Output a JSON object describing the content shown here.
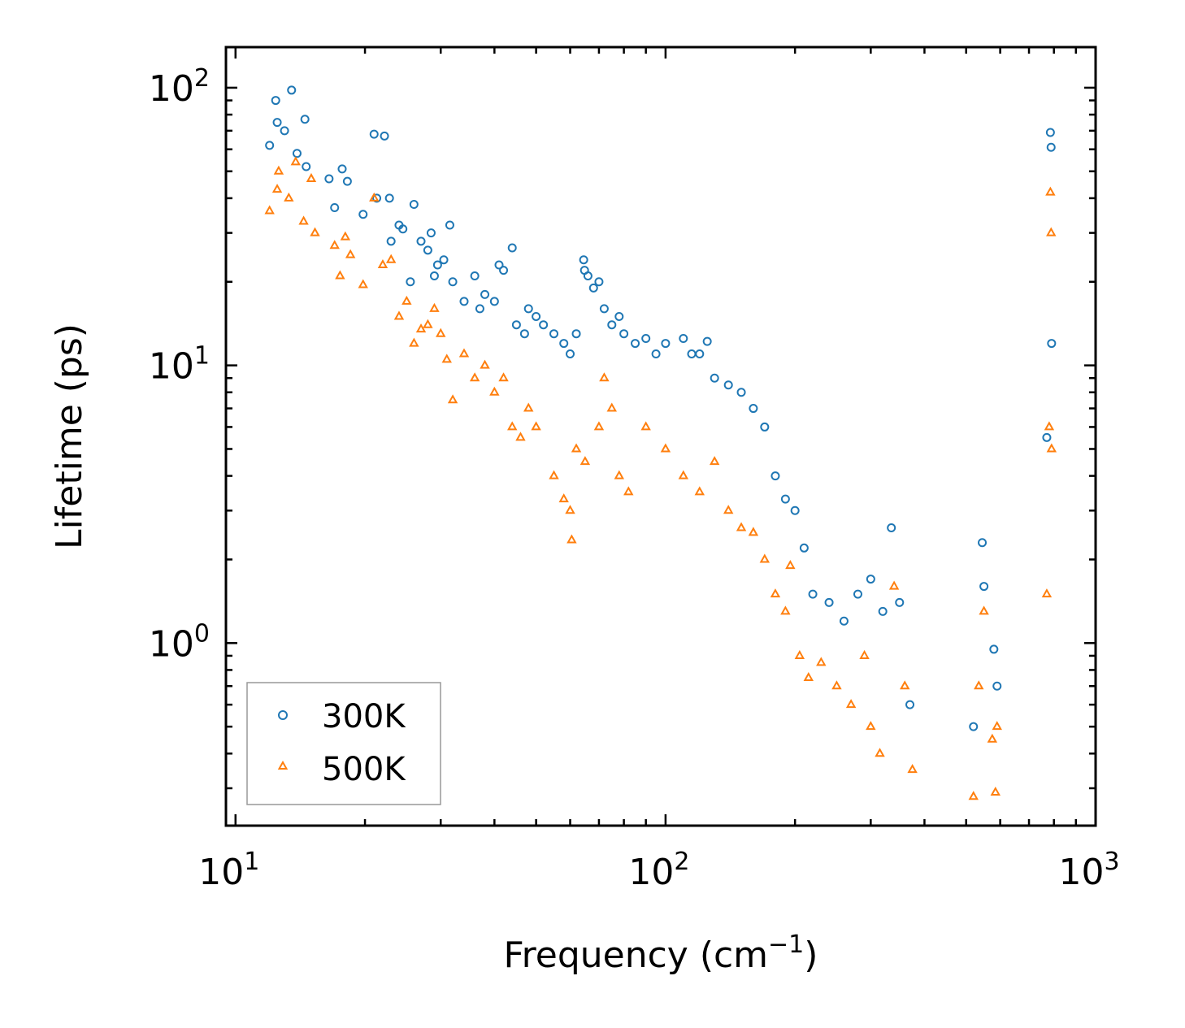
{
  "chart_data": {
    "type": "scatter",
    "title": "",
    "xlabel": "Frequency (cm",
    "xlabel_sup": "−1",
    "xlabel_suffix": ")",
    "ylabel": "Lifetime (ps)",
    "xscale": "log",
    "yscale": "log",
    "xlim": [
      9.5,
      1000
    ],
    "ylim": [
      0.22,
      140
    ],
    "x_ticks": [
      {
        "value": 10,
        "base": "10",
        "exp": "1"
      },
      {
        "value": 100,
        "base": "10",
        "exp": "2"
      },
      {
        "value": 1000,
        "base": "10",
        "exp": "3"
      }
    ],
    "y_ticks": [
      {
        "value": 1,
        "base": "10",
        "exp": "0"
      },
      {
        "value": 10,
        "base": "10",
        "exp": "1"
      },
      {
        "value": 100,
        "base": "10",
        "exp": "2"
      }
    ],
    "legend_position": "bottom-left",
    "series": [
      {
        "name": "300K",
        "color": "#1f77b4",
        "marker": "circle",
        "points": [
          [
            12.0,
            62
          ],
          [
            12.4,
            90
          ],
          [
            12.5,
            75
          ],
          [
            13.0,
            70
          ],
          [
            13.5,
            98
          ],
          [
            13.9,
            58
          ],
          [
            14.5,
            77
          ],
          [
            14.6,
            52
          ],
          [
            16.5,
            47
          ],
          [
            17.0,
            37
          ],
          [
            17.7,
            51
          ],
          [
            18.2,
            46
          ],
          [
            19.8,
            35
          ],
          [
            21.0,
            68
          ],
          [
            22.2,
            67
          ],
          [
            21.3,
            40
          ],
          [
            22.8,
            40
          ],
          [
            24.0,
            32
          ],
          [
            24.5,
            31
          ],
          [
            23.0,
            28
          ],
          [
            25.5,
            20
          ],
          [
            26.0,
            38
          ],
          [
            27.0,
            28
          ],
          [
            28.0,
            26
          ],
          [
            28.5,
            30
          ],
          [
            29.0,
            21
          ],
          [
            29.5,
            23
          ],
          [
            30.5,
            24
          ],
          [
            31.5,
            32
          ],
          [
            32.0,
            20
          ],
          [
            34.0,
            17
          ],
          [
            36.0,
            21
          ],
          [
            37.0,
            16
          ],
          [
            38.0,
            18
          ],
          [
            40.0,
            17
          ],
          [
            41.0,
            23
          ],
          [
            42.0,
            22
          ],
          [
            44.0,
            26.5
          ],
          [
            45.0,
            14
          ],
          [
            47.0,
            13
          ],
          [
            48.0,
            16
          ],
          [
            50.0,
            15
          ],
          [
            52.0,
            14
          ],
          [
            55.0,
            13
          ],
          [
            58.0,
            12
          ],
          [
            60.0,
            11
          ],
          [
            62.0,
            13
          ],
          [
            64.5,
            24
          ],
          [
            64.8,
            22
          ],
          [
            66.0,
            21
          ],
          [
            68.0,
            19
          ],
          [
            70.0,
            20
          ],
          [
            72.0,
            16
          ],
          [
            75.0,
            14
          ],
          [
            78.0,
            15
          ],
          [
            80.0,
            13
          ],
          [
            85.0,
            12
          ],
          [
            90.0,
            12.5
          ],
          [
            95.0,
            11
          ],
          [
            100.0,
            12
          ],
          [
            110.0,
            12.5
          ],
          [
            115.0,
            11
          ],
          [
            120.0,
            11
          ],
          [
            125.0,
            12.2
          ],
          [
            130.0,
            9
          ],
          [
            140.0,
            8.5
          ],
          [
            150.0,
            8
          ],
          [
            160.0,
            7
          ],
          [
            170.0,
            6
          ],
          [
            180.0,
            4
          ],
          [
            190.0,
            3.3
          ],
          [
            200.0,
            3.0
          ],
          [
            210.0,
            2.2
          ],
          [
            220.0,
            1.5
          ],
          [
            240.0,
            1.4
          ],
          [
            260.0,
            1.2
          ],
          [
            280.0,
            1.5
          ],
          [
            300.0,
            1.7
          ],
          [
            320.0,
            1.3
          ],
          [
            335.0,
            2.6
          ],
          [
            350.0,
            1.4
          ],
          [
            370.0,
            0.6
          ],
          [
            520.0,
            0.5
          ],
          [
            545.0,
            2.3
          ],
          [
            550.0,
            1.6
          ],
          [
            580.0,
            0.95
          ],
          [
            590.0,
            0.7
          ],
          [
            770.0,
            5.5
          ],
          [
            785.0,
            69
          ],
          [
            788.0,
            61
          ],
          [
            790.0,
            12
          ]
        ]
      },
      {
        "name": "500K",
        "color": "#ff7f0e",
        "marker": "triangle",
        "points": [
          [
            12.0,
            36
          ],
          [
            12.5,
            43
          ],
          [
            12.6,
            50
          ],
          [
            13.3,
            40
          ],
          [
            13.8,
            54
          ],
          [
            14.4,
            33
          ],
          [
            15.0,
            47
          ],
          [
            15.3,
            30
          ],
          [
            17.0,
            27
          ],
          [
            17.5,
            21
          ],
          [
            18.0,
            29
          ],
          [
            18.5,
            25
          ],
          [
            19.8,
            19.5
          ],
          [
            21.0,
            40
          ],
          [
            22.0,
            23
          ],
          [
            23.0,
            24
          ],
          [
            24.0,
            15
          ],
          [
            25.0,
            17
          ],
          [
            26.0,
            12
          ],
          [
            27.0,
            13.5
          ],
          [
            28.0,
            14
          ],
          [
            29.0,
            16
          ],
          [
            30.0,
            13
          ],
          [
            31.0,
            10.5
          ],
          [
            32.0,
            7.5
          ],
          [
            34.0,
            11
          ],
          [
            36.0,
            9
          ],
          [
            38.0,
            10
          ],
          [
            40.0,
            8
          ],
          [
            42.0,
            9
          ],
          [
            44.0,
            6
          ],
          [
            46.0,
            5.5
          ],
          [
            48.0,
            7
          ],
          [
            50.0,
            6
          ],
          [
            55.0,
            4
          ],
          [
            58.0,
            3.3
          ],
          [
            60.0,
            3.0
          ],
          [
            60.5,
            2.35
          ],
          [
            62.0,
            5
          ],
          [
            65.0,
            4.5
          ],
          [
            70.0,
            6
          ],
          [
            72.0,
            9
          ],
          [
            75.0,
            7
          ],
          [
            78.0,
            4
          ],
          [
            82.0,
            3.5
          ],
          [
            90.0,
            6
          ],
          [
            100.0,
            5
          ],
          [
            110.0,
            4
          ],
          [
            120.0,
            3.5
          ],
          [
            130.0,
            4.5
          ],
          [
            140.0,
            3.0
          ],
          [
            150.0,
            2.6
          ],
          [
            160.0,
            2.5
          ],
          [
            170.0,
            2.0
          ],
          [
            180.0,
            1.5
          ],
          [
            190.0,
            1.3
          ],
          [
            195.0,
            1.9
          ],
          [
            205.0,
            0.9
          ],
          [
            215.0,
            0.75
          ],
          [
            230.0,
            0.85
          ],
          [
            250.0,
            0.7
          ],
          [
            270.0,
            0.6
          ],
          [
            290.0,
            0.9
          ],
          [
            300.0,
            0.5
          ],
          [
            315.0,
            0.4
          ],
          [
            340.0,
            1.6
          ],
          [
            360.0,
            0.7
          ],
          [
            375.0,
            0.35
          ],
          [
            520.0,
            0.28
          ],
          [
            535.0,
            0.7
          ],
          [
            550.0,
            1.3
          ],
          [
            575.0,
            0.45
          ],
          [
            585.0,
            0.29
          ],
          [
            590.0,
            0.5
          ],
          [
            770.0,
            1.5
          ],
          [
            780.0,
            6
          ],
          [
            785.0,
            42
          ],
          [
            788.0,
            30
          ],
          [
            790.0,
            5
          ]
        ]
      }
    ]
  }
}
